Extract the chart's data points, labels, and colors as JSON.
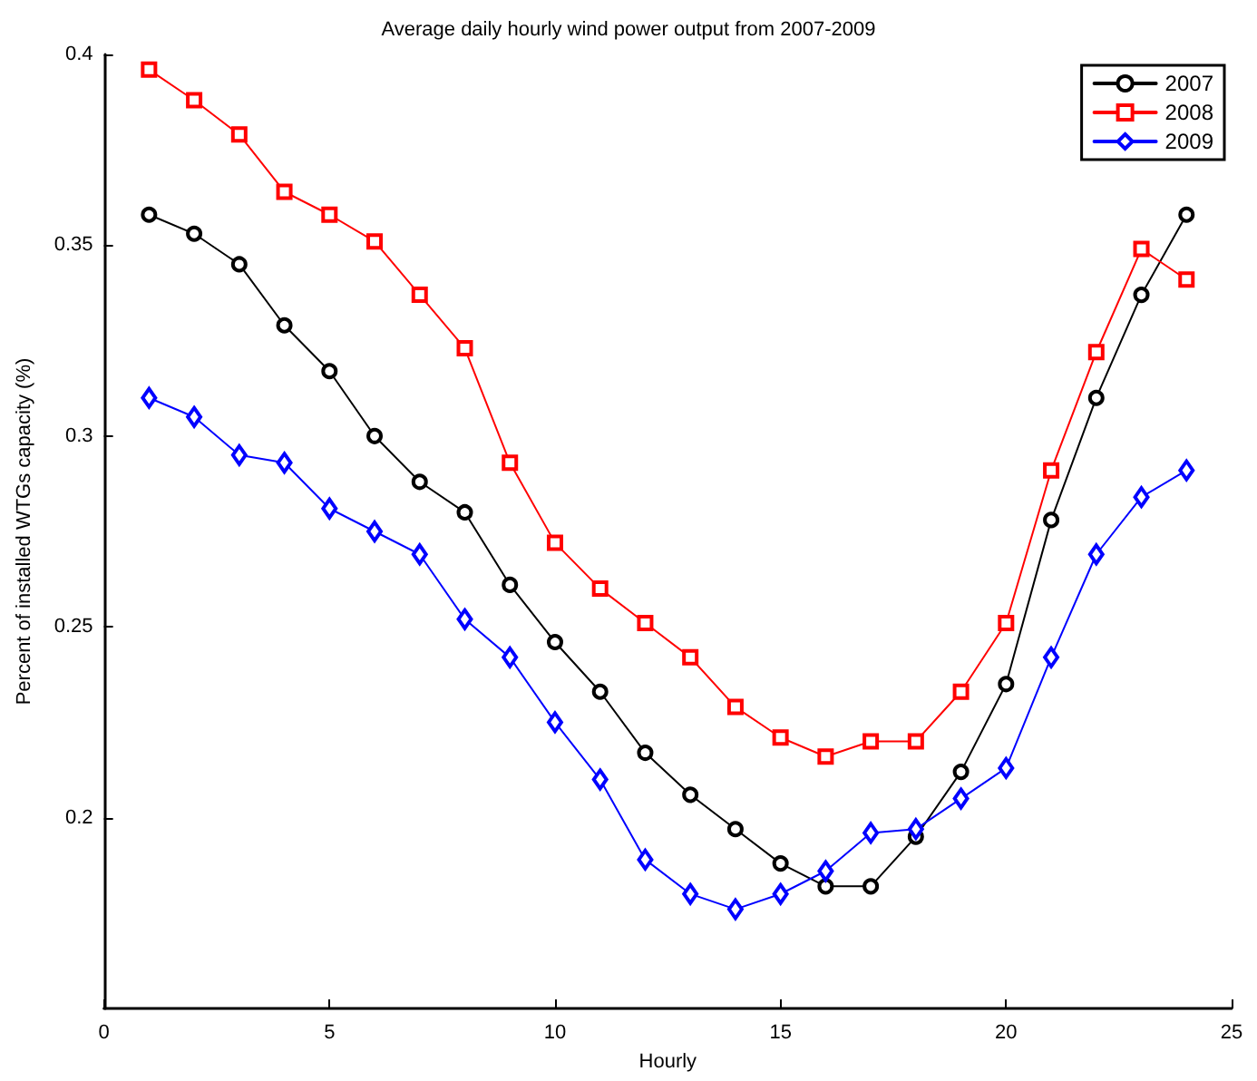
{
  "chart_data": {
    "type": "line",
    "title": "Average daily hourly wind power output from 2007-2009",
    "xlabel": "Hourly",
    "ylabel": "Percent of installed WTGs capacity (%)",
    "x": [
      1,
      2,
      3,
      4,
      5,
      6,
      7,
      8,
      9,
      10,
      11,
      12,
      13,
      14,
      15,
      16,
      17,
      18,
      19,
      20,
      21,
      22,
      23,
      24
    ],
    "series": [
      {
        "name": "2007",
        "color": "#000000",
        "marker": "circle",
        "values": [
          0.358,
          0.353,
          0.345,
          0.329,
          0.317,
          0.3,
          0.288,
          0.28,
          0.261,
          0.246,
          0.233,
          0.217,
          0.206,
          0.197,
          0.188,
          0.182,
          0.182,
          0.195,
          0.212,
          0.235,
          0.278,
          0.31,
          0.337,
          0.358
        ]
      },
      {
        "name": "2008",
        "color": "#ff0000",
        "marker": "square",
        "values": [
          0.396,
          0.388,
          0.379,
          0.364,
          0.358,
          0.351,
          0.337,
          0.323,
          0.293,
          0.272,
          0.26,
          0.251,
          0.242,
          0.229,
          0.221,
          0.216,
          0.22,
          0.22,
          0.233,
          0.251,
          0.291,
          0.322,
          0.349,
          0.341
        ]
      },
      {
        "name": "2009",
        "color": "#0000ff",
        "marker": "diamond",
        "values": [
          0.31,
          0.305,
          0.295,
          0.293,
          0.281,
          0.275,
          0.269,
          0.252,
          0.242,
          0.225,
          0.21,
          0.189,
          0.18,
          0.176,
          0.18,
          0.186,
          0.196,
          0.197,
          0.205,
          0.213,
          0.242,
          0.269,
          0.284,
          0.291
        ]
      }
    ],
    "xlim": [
      0,
      25
    ],
    "xticks": [
      0,
      5,
      10,
      15,
      20,
      25
    ],
    "ylim": [
      0.15,
      0.4
    ],
    "yticks": [
      0.2,
      0.25,
      0.3,
      0.35,
      0.4
    ],
    "grid": false,
    "legend": "top right",
    "line_style": "solid"
  }
}
